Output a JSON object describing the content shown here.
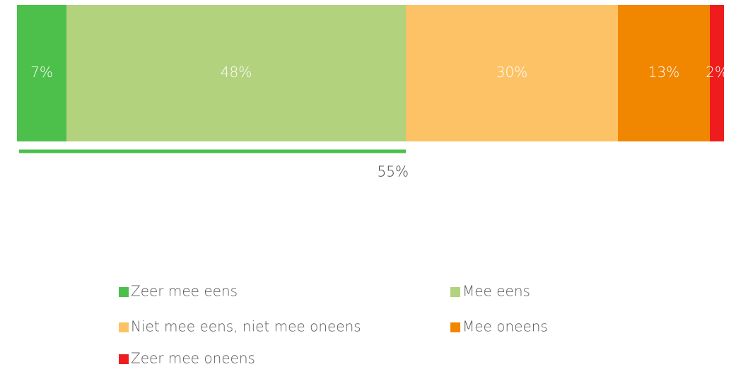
{
  "chart_data": {
    "type": "bar",
    "orientation": "horizontal",
    "stacked": true,
    "categories": [
      null
    ],
    "xlim": [
      0,
      100
    ],
    "series": [
      {
        "name": "Zeer mee eens",
        "color": "#4cc04a",
        "values": [
          7
        ],
        "value_labels": [
          "7%"
        ]
      },
      {
        "name": "Mee eens",
        "color": "#b2d27e",
        "values": [
          48
        ],
        "value_labels": [
          "48%"
        ]
      },
      {
        "name": "Niet mee eens, niet mee oneens",
        "color": "#fdc266",
        "values": [
          30
        ],
        "value_labels": [
          "30%"
        ]
      },
      {
        "name": "Mee oneens",
        "color": "#f18700",
        "values": [
          13
        ],
        "value_labels": [
          "13%"
        ]
      },
      {
        "name": "Zeer mee oneens",
        "color": "#ee1c1c",
        "values": [
          2
        ],
        "value_labels": [
          "2%"
        ]
      }
    ],
    "annotations": [
      {
        "value": 55,
        "label": "55%",
        "color": "#4cc04a"
      }
    ],
    "legend": "bottom"
  }
}
